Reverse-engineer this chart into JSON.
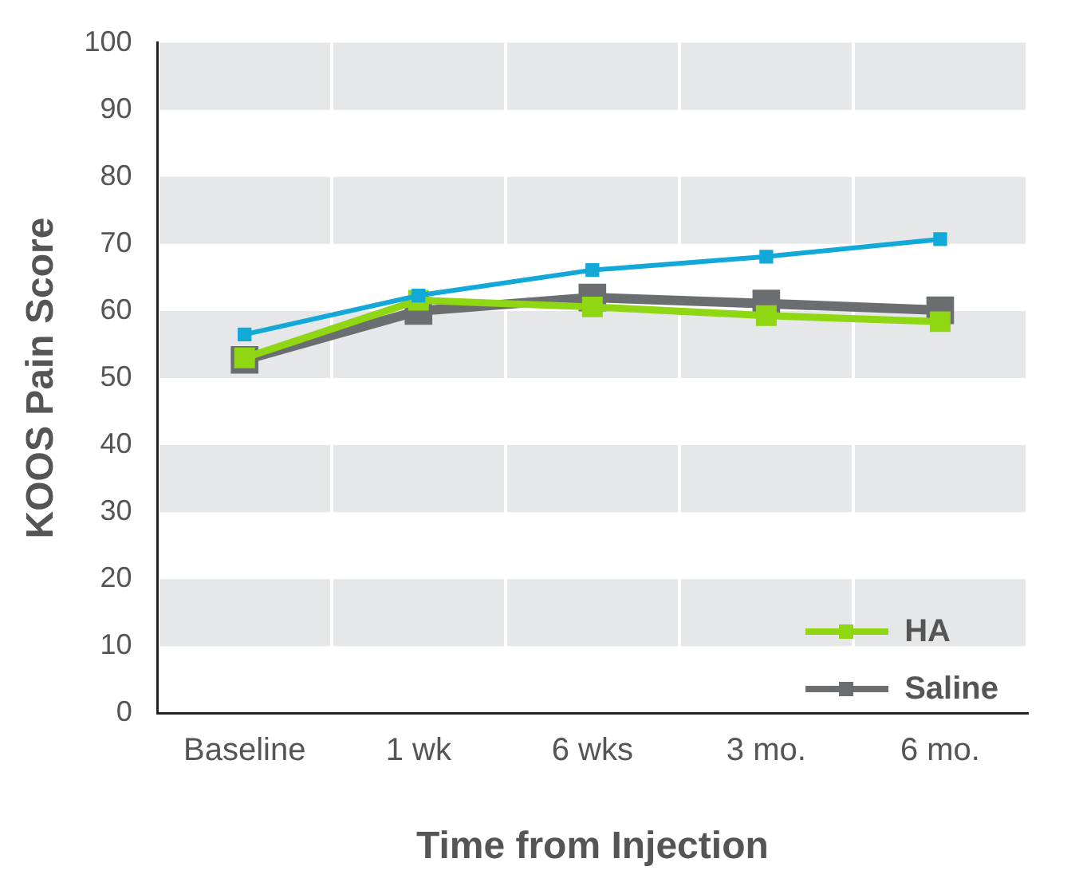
{
  "chart_data": {
    "type": "line",
    "xlabel": "Time from Injection",
    "ylabel": "KOOS Pain Score",
    "categories": [
      "Baseline",
      "1 wk",
      "6 wks",
      "3 mo.",
      "6 mo."
    ],
    "series": [
      {
        "color": "#12a8d8",
        "values": [
          56.5,
          62.3,
          66.1,
          68.1,
          70.7
        ]
      },
      {
        "name": "HA",
        "color": "#8fd613",
        "values": [
          53.0,
          61.6,
          60.6,
          59.3,
          58.4
        ]
      },
      {
        "name": "Saline",
        "color": "#6b6e71",
        "values": [
          52.7,
          60.0,
          62.0,
          61.1,
          60.1
        ]
      }
    ],
    "ylim": [
      0,
      100
    ],
    "yticks": [
      0,
      10,
      20,
      30,
      40,
      50,
      60,
      70,
      80,
      90,
      100
    ],
    "grid": true,
    "legend": "bottom right",
    "marker": "square",
    "line_style": "solid"
  }
}
